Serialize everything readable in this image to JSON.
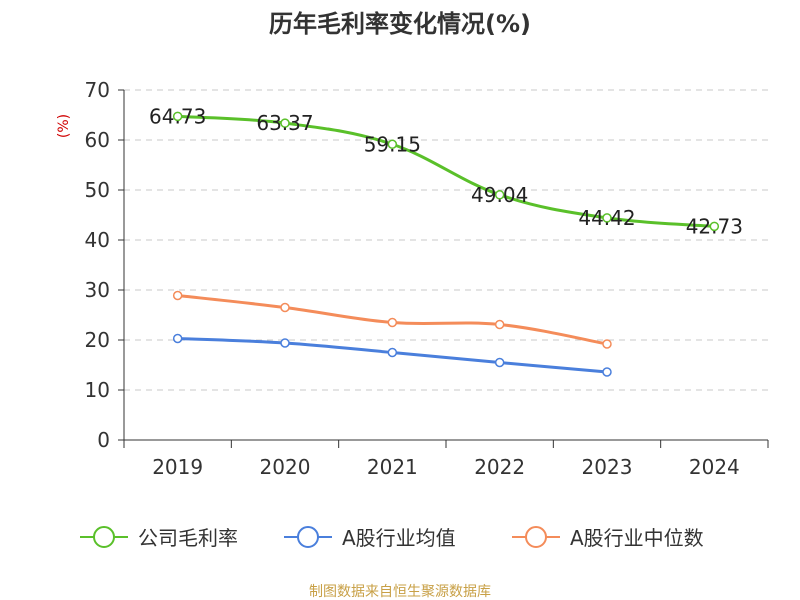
{
  "chart_data": {
    "type": "line",
    "title": "历年毛利率变化情况(%)",
    "ylabel": "(%)",
    "ylim": [
      0,
      70
    ],
    "yticks": [
      0,
      10,
      20,
      30,
      40,
      50,
      60,
      70
    ],
    "categories": [
      "2019",
      "2020",
      "2021",
      "2022",
      "2023",
      "2024"
    ],
    "grid": true,
    "legend_position": "bottom",
    "series": [
      {
        "name": "公司毛利率",
        "color": "#5ac02a",
        "values": [
          64.73,
          63.37,
          59.15,
          49.04,
          44.42,
          42.73
        ],
        "labels": [
          "64.73",
          "63.37",
          "59.15",
          "49.04",
          "44.42",
          "42.73"
        ],
        "show_labels": true
      },
      {
        "name": "A股行业均值",
        "color": "#4a7fdc",
        "values": [
          20.3,
          19.4,
          17.5,
          15.5,
          13.6,
          null
        ],
        "show_labels": false
      },
      {
        "name": "A股行业中位数",
        "color": "#f48c5a",
        "values": [
          28.9,
          26.5,
          23.5,
          23.1,
          19.2,
          null
        ],
        "show_labels": false
      }
    ]
  },
  "source": {
    "text": "制图数据来自恒生聚源数据库",
    "color": "#c8a046"
  },
  "colors": {
    "axis": "#333333",
    "grid": "#c8c8c8",
    "unit_label": "#d00000"
  }
}
